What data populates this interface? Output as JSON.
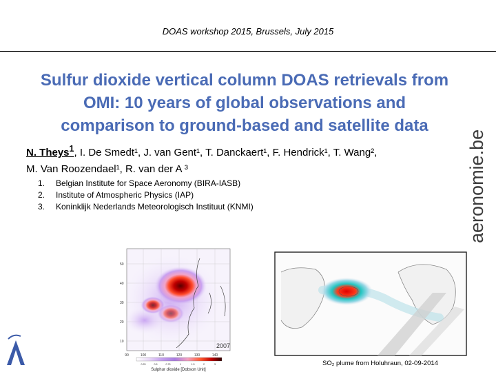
{
  "header": {
    "text": "DOAS workshop 2015, Brussels, July 2015"
  },
  "title": {
    "line1": "Sulfur dioxide vertical column DOAS retrievals from",
    "line2": "OMI: 10 years of global observations and",
    "line3": "comparison to ground-based and satellite data"
  },
  "authors": {
    "lead_name": "N. Theys",
    "lead_sup": "1",
    "rest_line1": ", I. De Smedt¹, J. van Gent¹, T. Danckaert¹,  F. Hendrick¹, T. Wang²,",
    "line2": "M. Van Roozendael¹, R. van der A ³"
  },
  "affiliations": [
    {
      "num": "1.",
      "text": "Belgian Institute for Space Aeronomy (BIRA-IASB)"
    },
    {
      "num": "2.",
      "text": "Institute of Atmospheric Physics (IAP)"
    },
    {
      "num": "3.",
      "text": "Koninklijk Nederlands Meteorologisch Instituut (KNMI)"
    }
  ],
  "brand": {
    "text": "aeronomie.be",
    "color": "#3c3c3c"
  },
  "figure1": {
    "lat_labels": [
      "50",
      "40",
      "30",
      "20",
      "10"
    ],
    "lon_labels": [
      "90",
      "100",
      "110",
      "120",
      "130",
      "140"
    ],
    "year": "2007",
    "colorbar_ticks": [
      "0.25",
      "0.5",
      "0.75",
      "1",
      "1.5",
      "2",
      "3"
    ],
    "colorbar_label": "Sulphur dioxide [Dobson Unit]"
  },
  "figure2": {
    "caption": "SO₂ plume from Holuhraun, 02-09-2014"
  },
  "logo": {
    "letter": "A",
    "color": "#3b5aa8"
  }
}
